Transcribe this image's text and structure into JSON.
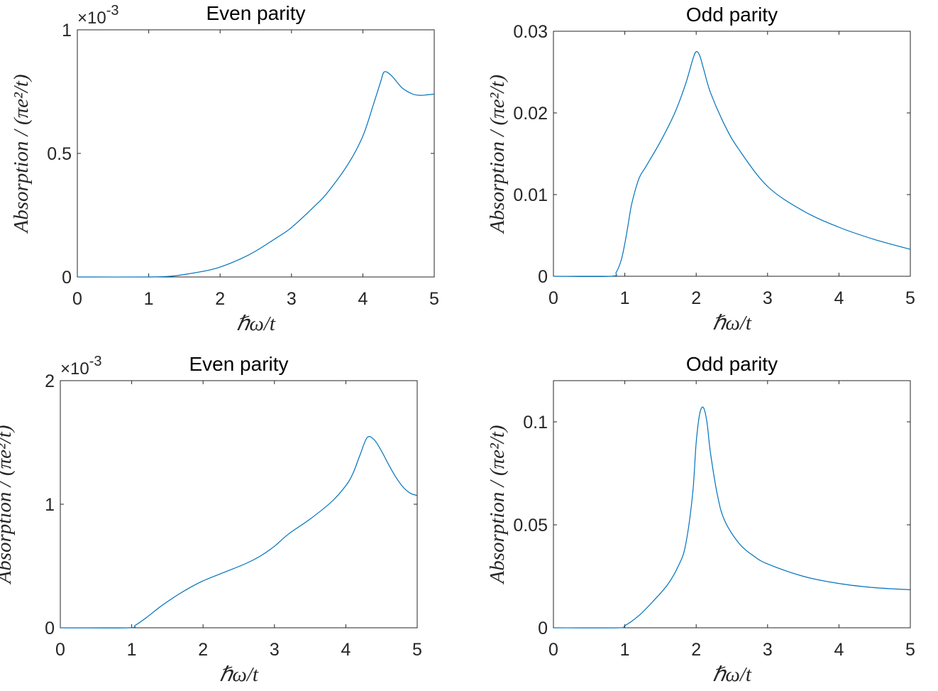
{
  "colors": {
    "series": "#0072bd",
    "axes": "#262626",
    "background": "#ffffff"
  },
  "chart_data": [
    {
      "type": "line",
      "title": "Even parity",
      "xlabel": "ℏω/t",
      "ylabel": "Absorption / (πe²/t)",
      "xlim": [
        0,
        5
      ],
      "ylim": [
        0,
        1
      ],
      "xticks": [
        "0",
        "1",
        "2",
        "3",
        "4",
        "5"
      ],
      "yticks": [
        "0",
        "0.5",
        "1"
      ],
      "exponent": "×10",
      "exponent_power": "-3",
      "grid": false,
      "series": [
        {
          "x": [
            0,
            1.0,
            1.3,
            1.5,
            1.8,
            2.0,
            2.3,
            2.5,
            2.8,
            3.0,
            3.3,
            3.5,
            3.8,
            4.0,
            4.15,
            4.25,
            4.3,
            4.4,
            4.55,
            4.7,
            4.8,
            4.9,
            5.0
          ],
          "values": [
            0,
            0,
            0.003,
            0.01,
            0.025,
            0.04,
            0.075,
            0.105,
            0.16,
            0.2,
            0.28,
            0.34,
            0.46,
            0.57,
            0.7,
            0.79,
            0.83,
            0.815,
            0.765,
            0.74,
            0.735,
            0.737,
            0.74
          ]
        }
      ]
    },
    {
      "type": "line",
      "title": "Odd parity",
      "xlabel": "ℏω/t",
      "ylabel": "Absorption / (πe²/t)",
      "xlim": [
        0,
        5
      ],
      "ylim": [
        0,
        0.03
      ],
      "xticks": [
        "0",
        "1",
        "2",
        "3",
        "4",
        "5"
      ],
      "yticks": [
        "0",
        "0.01",
        "0.02",
        "0.03"
      ],
      "grid": false,
      "series": [
        {
          "x": [
            0,
            0.8,
            0.88,
            0.95,
            1.0,
            1.05,
            1.1,
            1.2,
            1.3,
            1.5,
            1.7,
            1.85,
            1.95,
            2.0,
            2.05,
            2.1,
            2.2,
            2.4,
            2.6,
            3.0,
            3.5,
            4.0,
            4.5,
            5.0
          ],
          "values": [
            0,
            0,
            0.0005,
            0.002,
            0.004,
            0.0065,
            0.009,
            0.012,
            0.0135,
            0.0165,
            0.02,
            0.0235,
            0.0265,
            0.0275,
            0.027,
            0.0255,
            0.0225,
            0.0185,
            0.0155,
            0.011,
            0.008,
            0.006,
            0.0045,
            0.0033
          ]
        }
      ]
    },
    {
      "type": "line",
      "title": "Even parity",
      "xlabel": "ℏω/t",
      "ylabel": "Absorption / (πe²/t)",
      "xlim": [
        0,
        5
      ],
      "ylim": [
        0,
        2
      ],
      "xticks": [
        "0",
        "1",
        "2",
        "3",
        "4",
        "5"
      ],
      "yticks": [
        "0",
        "1",
        "2"
      ],
      "exponent": "×10",
      "exponent_power": "-3",
      "grid": false,
      "series": [
        {
          "x": [
            0,
            0.95,
            1.05,
            1.2,
            1.4,
            1.6,
            1.8,
            2.0,
            2.3,
            2.6,
            2.8,
            3.0,
            3.2,
            3.5,
            3.8,
            4.0,
            4.1,
            4.2,
            4.3,
            4.4,
            4.5,
            4.6,
            4.7,
            4.8,
            4.9,
            5.0
          ],
          "values": [
            0,
            0,
            0.02,
            0.08,
            0.17,
            0.25,
            0.32,
            0.38,
            0.45,
            0.52,
            0.58,
            0.66,
            0.76,
            0.88,
            1.02,
            1.15,
            1.25,
            1.4,
            1.54,
            1.52,
            1.43,
            1.32,
            1.22,
            1.14,
            1.09,
            1.07
          ]
        }
      ]
    },
    {
      "type": "line",
      "title": "Odd parity",
      "xlabel": "ℏω/t",
      "ylabel": "Absorption / (πe²/t)",
      "xlim": [
        0,
        5
      ],
      "ylim": [
        0,
        0.12
      ],
      "xticks": [
        "0",
        "1",
        "2",
        "3",
        "4",
        "5"
      ],
      "yticks": [
        "0",
        "0.05",
        "0.1"
      ],
      "grid": false,
      "series": [
        {
          "x": [
            0,
            0.9,
            1.0,
            1.2,
            1.4,
            1.6,
            1.75,
            1.85,
            1.95,
            2.0,
            2.05,
            2.1,
            2.15,
            2.2,
            2.3,
            2.4,
            2.6,
            2.8,
            3.0,
            3.5,
            4.0,
            4.5,
            5.0
          ],
          "values": [
            0,
            0,
            0.001,
            0.006,
            0.013,
            0.021,
            0.03,
            0.04,
            0.065,
            0.09,
            0.104,
            0.107,
            0.1,
            0.085,
            0.064,
            0.052,
            0.041,
            0.035,
            0.031,
            0.025,
            0.0215,
            0.0195,
            0.0185
          ]
        }
      ]
    }
  ]
}
